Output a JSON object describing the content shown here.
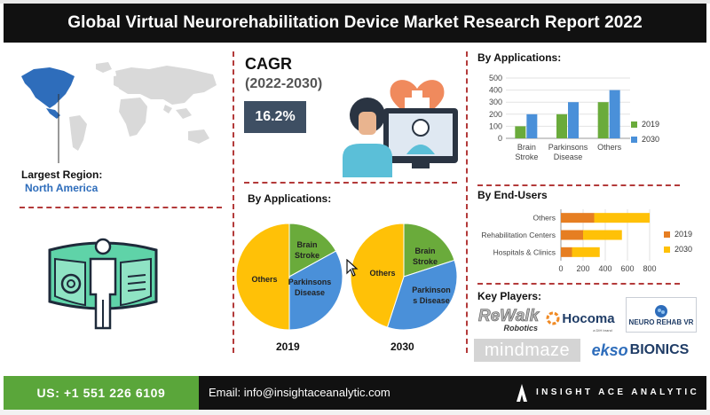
{
  "header": {
    "title": "Global Virtual Neurorehabilitation Device Market Research Report 2022"
  },
  "region": {
    "label": "Largest Region:",
    "value": "North America"
  },
  "cagr": {
    "title": "CAGR",
    "years": "(2022-2030)",
    "value": "16.2%"
  },
  "pies": {
    "heading": "By Applications:",
    "labels": {
      "others": "Others",
      "brain": [
        "Brain",
        "Stroke"
      ],
      "parkinsons_2019": [
        "Parkinsons",
        "Disease"
      ],
      "parkinsons_2030": [
        "Parkinson",
        "s Disease"
      ]
    },
    "year_2019": "2019",
    "year_2030": "2030"
  },
  "applications_chart": {
    "heading": "By Applications:"
  },
  "endusers_chart": {
    "heading": "By End-Users"
  },
  "key_players": {
    "heading": "Key Players:",
    "logos": [
      "ReWalk",
      "Robotics",
      "Hocoma",
      "a DIH brand",
      "NEURO REHAB VR",
      "mindmaze",
      "ekso",
      "BIONICS"
    ]
  },
  "footer": {
    "phone": "US: +1 551 226 6109",
    "email": "Email: info@insightaceanalytic.com",
    "brand": "INSIGHT ACE ANALYTIC"
  },
  "colors": {
    "c2019": "#6aab3b",
    "c2030": "#4a90d9",
    "others": "#ffc107",
    "brain": "#6aab3b",
    "parkinsons": "#4a90d9",
    "enduser2019": "#e67e22",
    "enduser2030": "#ffc107"
  },
  "chart_data": [
    {
      "type": "bar",
      "title": "By Applications:",
      "categories": [
        [
          "Brain",
          "Stroke"
        ],
        [
          "Parkinsons",
          "Disease"
        ],
        [
          "Others"
        ]
      ],
      "series": [
        {
          "name": "2019",
          "values": [
            100,
            200,
            300
          ]
        },
        {
          "name": "2030",
          "values": [
            200,
            300,
            400
          ]
        }
      ],
      "ylim": [
        0,
        500
      ],
      "yticks": [
        0,
        100,
        200,
        300,
        400,
        500
      ],
      "legend": "right"
    },
    {
      "type": "bar",
      "orientation": "horizontal",
      "stacked": true,
      "title": "By End-Users",
      "categories": [
        "Others",
        "Rehabilitation Centers",
        "Hospitals & Clinics"
      ],
      "series": [
        {
          "name": "2019",
          "values": [
            300,
            200,
            100
          ]
        },
        {
          "name": "2030",
          "values": [
            500,
            350,
            250
          ]
        }
      ],
      "xlim": [
        0,
        800
      ],
      "xticks": [
        0,
        200,
        400,
        600,
        800
      ],
      "legend": "right"
    },
    {
      "type": "pie",
      "title": "2019",
      "labels": [
        "Others",
        "Brain Stroke",
        "Parkinsons Disease"
      ],
      "values": [
        50,
        17,
        33
      ]
    },
    {
      "type": "pie",
      "title": "2030",
      "labels": [
        "Others",
        "Brain Stroke",
        "Parkinsons Disease"
      ],
      "values": [
        45,
        20,
        35
      ]
    }
  ]
}
